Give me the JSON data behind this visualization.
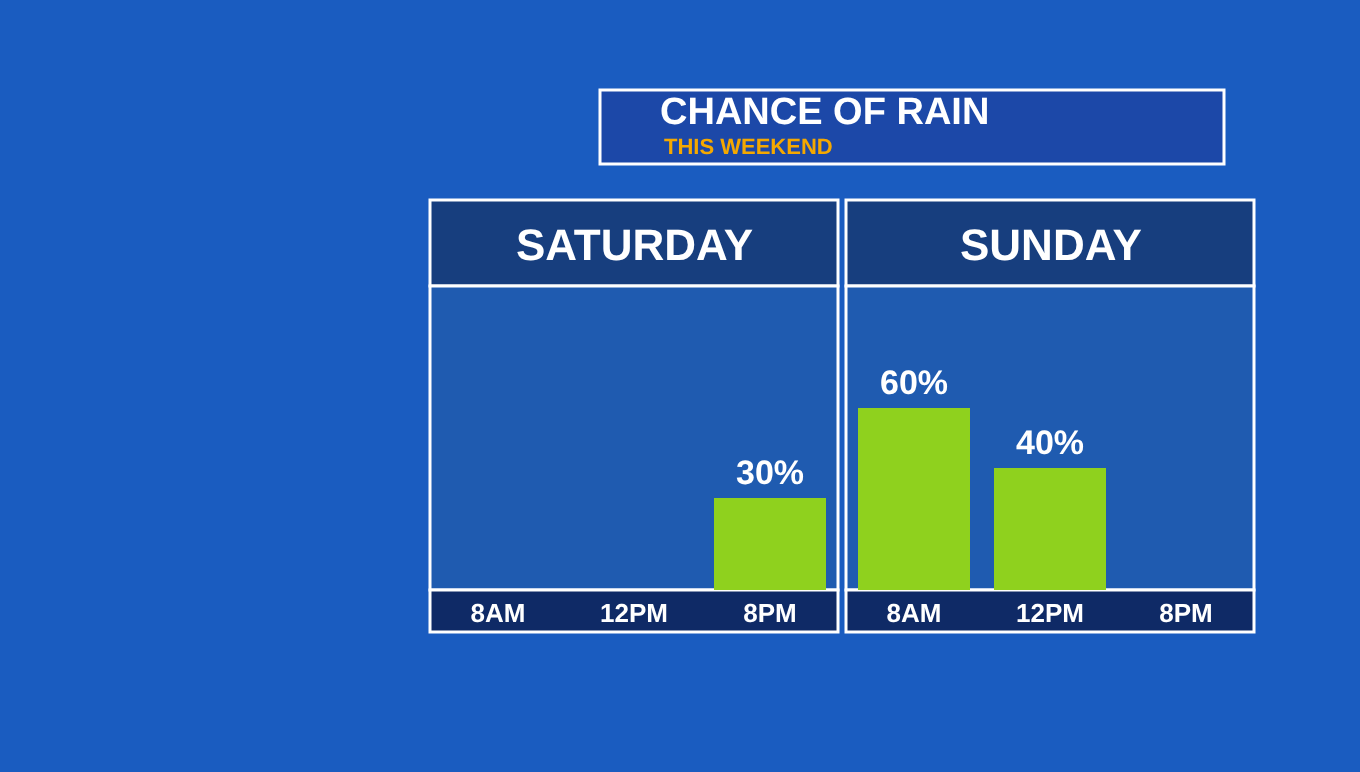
{
  "chart_data": [
    {
      "type": "other",
      "title": "CHANCE OF RAIN",
      "subtitle": "THIS WEEKEND"
    },
    {
      "type": "bar",
      "title": "SATURDAY",
      "categories": [
        "8AM",
        "12PM",
        "8PM"
      ],
      "values": [
        null,
        null,
        30
      ],
      "value_labels": [
        null,
        null,
        "30%"
      ],
      "color": "#8fd11e",
      "ylim": [
        0,
        100
      ],
      "tick_labels": "x",
      "grid": false,
      "legend": false
    },
    {
      "type": "bar",
      "title": "SUNDAY",
      "categories": [
        "8AM",
        "12PM",
        "8PM"
      ],
      "values": [
        60,
        40,
        null
      ],
      "value_labels": [
        "60%",
        "40%",
        null
      ],
      "color": "#8fd11e",
      "ylim": [
        0,
        100
      ],
      "tick_labels": "x",
      "grid": false,
      "legend": false
    }
  ]
}
